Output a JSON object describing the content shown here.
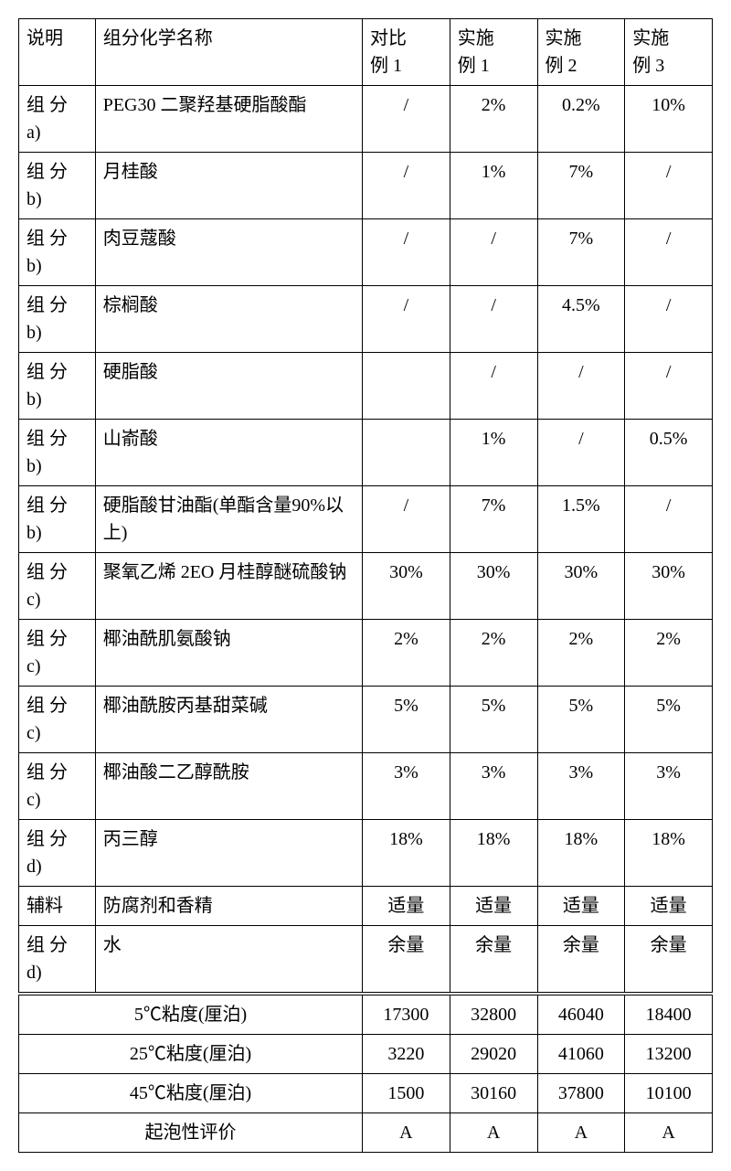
{
  "headers": {
    "desc": "说明",
    "name": "组分化学名称",
    "col1_line1": "对比",
    "col1_line2": "例 1",
    "col2_line1": "实施",
    "col2_line2": "例 1",
    "col3_line1": "实施",
    "col3_line2": "例 2",
    "col4_line1": "实施",
    "col4_line2": "例 3"
  },
  "rows": [
    {
      "desc_l1": "组 分",
      "desc_l2": "a)",
      "name": "PEG30 二聚羟基硬脂酸酯",
      "v1": "/",
      "v2": "2%",
      "v3": "0.2%",
      "v4": "10%"
    },
    {
      "desc_l1": "组 分",
      "desc_l2": "b)",
      "name": "月桂酸",
      "v1": "/",
      "v2": "1%",
      "v3": "7%",
      "v4": "/"
    },
    {
      "desc_l1": "组 分",
      "desc_l2": "b)",
      "name": "肉豆蔻酸",
      "v1": "/",
      "v2": "/",
      "v3": "7%",
      "v4": "/"
    },
    {
      "desc_l1": "组 分",
      "desc_l2": "b)",
      "name": "棕榈酸",
      "v1": "/",
      "v2": "/",
      "v3": "4.5%",
      "v4": "/"
    },
    {
      "desc_l1": "组 分",
      "desc_l2": "b)",
      "name": "硬脂酸",
      "v1": "",
      "v2": "/",
      "v3": "/",
      "v4": "/"
    },
    {
      "desc_l1": "组 分",
      "desc_l2": "b)",
      "name": "山嵛酸",
      "v1": "",
      "v2": "1%",
      "v3": "/",
      "v4": "0.5%"
    },
    {
      "desc_l1": "组 分",
      "desc_l2": "b)",
      "name": "硬脂酸甘油酯(单酯含量90%以上)",
      "v1": "/",
      "v2": "7%",
      "v3": "1.5%",
      "v4": "/"
    },
    {
      "desc_l1": "组 分",
      "desc_l2": "c)",
      "name": "聚氧乙烯 2EO 月桂醇醚硫酸钠",
      "v1": "30%",
      "v2": "30%",
      "v3": "30%",
      "v4": "30%"
    },
    {
      "desc_l1": "组 分",
      "desc_l2": "c)",
      "name": "椰油酰肌氨酸钠",
      "v1": "2%",
      "v2": "2%",
      "v3": "2%",
      "v4": "2%"
    },
    {
      "desc_l1": "组 分",
      "desc_l2": "c)",
      "name": "椰油酰胺丙基甜菜碱",
      "v1": "5%",
      "v2": "5%",
      "v3": "5%",
      "v4": "5%"
    },
    {
      "desc_l1": "组 分",
      "desc_l2": "c)",
      "name": "椰油酸二乙醇酰胺",
      "v1": "3%",
      "v2": "3%",
      "v3": "3%",
      "v4": "3%"
    },
    {
      "desc_l1": "组 分",
      "desc_l2": "d)",
      "name": "丙三醇",
      "v1": "18%",
      "v2": "18%",
      "v3": "18%",
      "v4": "18%"
    },
    {
      "desc_l1": "辅料",
      "desc_l2": "",
      "name": "防腐剂和香精",
      "v1": "适量",
      "v2": "适量",
      "v3": "适量",
      "v4": "适量"
    },
    {
      "desc_l1": "组 分",
      "desc_l2": "d)",
      "name": "水",
      "v1": "余量",
      "v2": "余量",
      "v3": "余量",
      "v4": "余量"
    }
  ],
  "summary": [
    {
      "label": "5℃粘度(厘泊)",
      "v1": "17300",
      "v2": "32800",
      "v3": "46040",
      "v4": "18400"
    },
    {
      "label": "25℃粘度(厘泊)",
      "v1": "3220",
      "v2": "29020",
      "v3": "41060",
      "v4": "13200"
    },
    {
      "label": "45℃粘度(厘泊)",
      "v1": "1500",
      "v2": "30160",
      "v3": "37800",
      "v4": "10100"
    },
    {
      "label": "起泡性评价",
      "v1": "A",
      "v2": "A",
      "v3": "A",
      "v4": "A"
    }
  ]
}
